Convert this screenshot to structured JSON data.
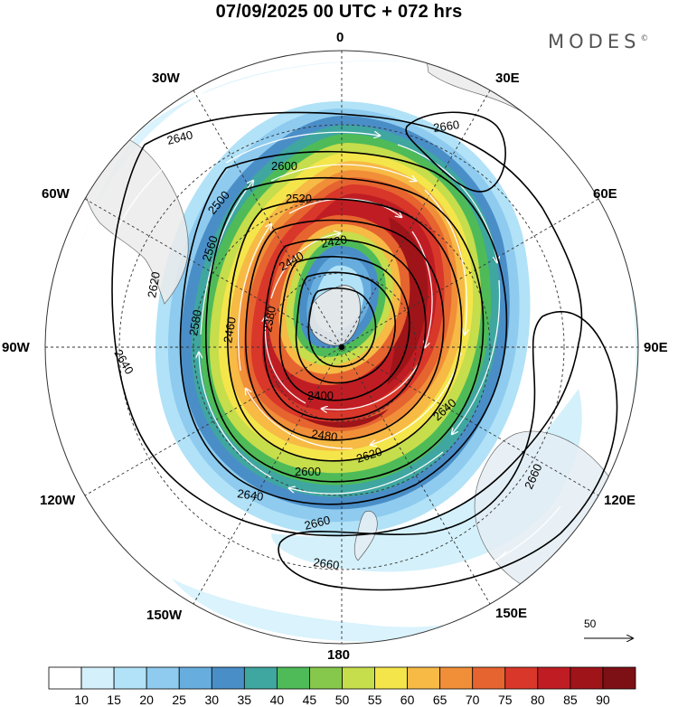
{
  "header": {
    "title": "07/09/2025  00 UTC  + 072 hrs",
    "brand": "MODES",
    "brand_mark": "©"
  },
  "map": {
    "projection": "south-polar-stereographic",
    "longitude_labels": [
      {
        "id": "0",
        "text": "0"
      },
      {
        "id": "30E",
        "text": "30E"
      },
      {
        "id": "60E",
        "text": "60E"
      },
      {
        "id": "90E",
        "text": "90E"
      },
      {
        "id": "120E",
        "text": "120E"
      },
      {
        "id": "150E",
        "text": "150E"
      },
      {
        "id": "180",
        "text": "180"
      },
      {
        "id": "150W",
        "text": "150W"
      },
      {
        "id": "120W",
        "text": "120W"
      },
      {
        "id": "90W",
        "text": "90W"
      },
      {
        "id": "60W",
        "text": "60W"
      },
      {
        "id": "30W",
        "text": "30W"
      }
    ],
    "contour_labels": [
      "2640",
      "2660",
      "2600",
      "2620",
      "2560",
      "2520",
      "2500",
      "2420",
      "2440",
      "2460",
      "2400",
      "2380",
      "2580",
      "2480",
      "2640",
      "2620",
      "2600",
      "2640",
      "2660",
      "2660",
      "2640",
      "2660"
    ],
    "reference_vector": "50",
    "colors": {
      "land": "#e8e8e8",
      "contour": "#000000",
      "streamline": "#ffffff"
    }
  },
  "colorbar": {
    "labels": [
      "10",
      "15",
      "20",
      "25",
      "30",
      "35",
      "40",
      "45",
      "50",
      "55",
      "60",
      "65",
      "70",
      "75",
      "80",
      "85",
      "90"
    ],
    "colors": [
      "#ffffff",
      "#d4f1fb",
      "#b1e2f7",
      "#8ecbef",
      "#67aedf",
      "#4a8ec8",
      "#3fa6a0",
      "#4ebb58",
      "#86c84b",
      "#c6dd4c",
      "#f4e54b",
      "#f6ba45",
      "#f18f39",
      "#e6642f",
      "#d8372a",
      "#bf1d23",
      "#9f1419",
      "#7d1015"
    ]
  }
}
